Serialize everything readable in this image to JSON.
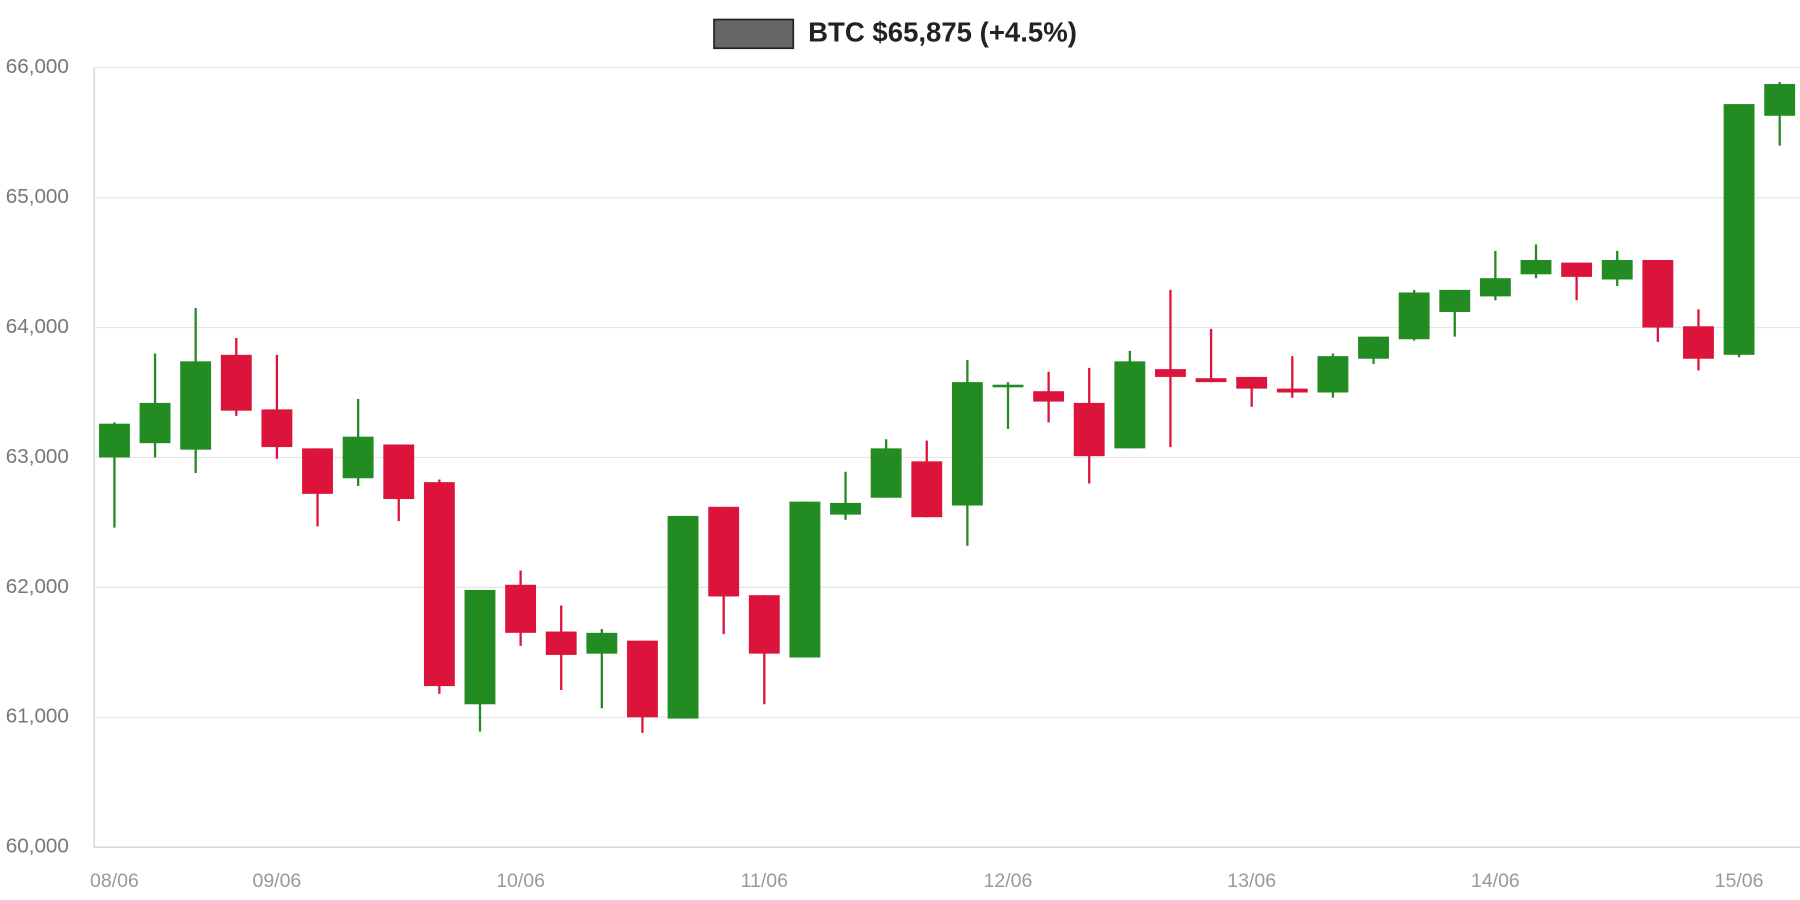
{
  "chart_data": {
    "type": "candlestick",
    "categories": [
      "08/06",
      null,
      null,
      null,
      "09/06",
      null,
      null,
      null,
      null,
      null,
      "10/06",
      null,
      null,
      null,
      null,
      null,
      "11/06",
      null,
      null,
      null,
      null,
      null,
      "12/06",
      null,
      null,
      null,
      null,
      null,
      "13/06",
      null,
      null,
      null,
      null,
      null,
      "14/06",
      null,
      null,
      null,
      null,
      null,
      "15/06",
      null
    ],
    "series": [
      {
        "name": "BTC $65,875 (+4.5%)",
        "color": "#666666",
        "open": [
          63000,
          63110,
          63060,
          63790,
          63370,
          63070,
          62840,
          63100,
          62810,
          61100,
          62020,
          61660,
          61490,
          61590,
          60990,
          62620,
          61940,
          61460,
          62560,
          62690,
          62970,
          62630,
          63540,
          63510,
          63420,
          63070,
          63680,
          63610,
          63620,
          63530,
          63500,
          63760,
          63910,
          64120,
          64240,
          64410,
          64500,
          64370,
          64520,
          64010,
          63790,
          65630
        ],
        "high": [
          63270,
          63800,
          64150,
          63920,
          63790,
          63070,
          63450,
          63100,
          62830,
          61980,
          62130,
          61860,
          61680,
          61590,
          62550,
          62620,
          61940,
          62660,
          62890,
          63140,
          63130,
          63750,
          63580,
          63660,
          63690,
          63820,
          64290,
          63990,
          63620,
          63780,
          63800,
          63930,
          64290,
          64290,
          64590,
          64640,
          64500,
          64590,
          64520,
          64140,
          65720,
          65890
        ],
        "low": [
          62460,
          63000,
          62880,
          63320,
          62990,
          62470,
          62780,
          62510,
          61180,
          60890,
          61550,
          61210,
          61070,
          60880,
          60990,
          61640,
          61100,
          61460,
          62520,
          62690,
          62540,
          62320,
          63220,
          63270,
          62800,
          63070,
          63080,
          63580,
          63390,
          63460,
          63460,
          63720,
          63900,
          63930,
          64210,
          64380,
          64210,
          64320,
          63890,
          63670,
          63770,
          65400
        ],
        "close": [
          63260,
          63420,
          63740,
          63360,
          63080,
          62720,
          63160,
          62680,
          61240,
          61980,
          61650,
          61480,
          61650,
          61000,
          62550,
          61930,
          61490,
          62660,
          62650,
          63070,
          62540,
          63580,
          63560,
          63430,
          63010,
          63740,
          63620,
          63580,
          63530,
          63500,
          63780,
          63930,
          64270,
          64290,
          64380,
          64520,
          64390,
          64520,
          64000,
          63760,
          65720,
          65875
        ]
      }
    ],
    "up_color": "#228b22",
    "down_color": "#dc143c",
    "ylim": [
      60000,
      66000
    ],
    "yticks": [
      {
        "value": 60000,
        "label": "60,000"
      },
      {
        "value": 61000,
        "label": "61,000"
      },
      {
        "value": 62000,
        "label": "62,000"
      },
      {
        "value": 63000,
        "label": "63,000"
      },
      {
        "value": 64000,
        "label": "64,000"
      },
      {
        "value": 65000,
        "label": "65,000"
      },
      {
        "value": 66000,
        "label": "66,000"
      }
    ],
    "grid": true
  }
}
